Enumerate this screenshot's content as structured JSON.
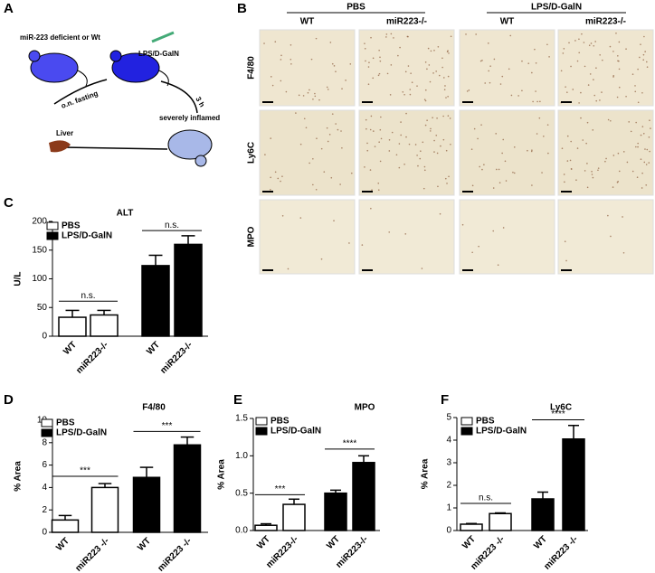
{
  "panel_letters": [
    "A",
    "B"
  ],
  "diagram": {
    "group": "miR-223 deficient or Wt",
    "treatment": "LPS/D-GalN",
    "fasting": "o.n. fasting",
    "time": "3 h",
    "state": "severely inflamed",
    "organ": "Liver"
  },
  "micrographs": {
    "groups": [
      "PBS",
      "LPS/D-GalN"
    ],
    "columns": [
      "WT",
      "miR223-/-",
      "WT",
      "miR223-/-"
    ],
    "rows": [
      "F4/80",
      "Ly6C",
      "MPO"
    ]
  },
  "chart_data": [
    {
      "type": "bar",
      "panel": "C",
      "title": "ALT",
      "ylabel": "U/L",
      "categories": [
        "WT",
        "miR223-/-",
        "WT",
        "miR223-/-"
      ],
      "series": [
        {
          "name": "PBS",
          "color": "#ffffff",
          "values": [
            33,
            37,
            null,
            null
          ],
          "errors": [
            12,
            8,
            null,
            null
          ]
        },
        {
          "name": "LPS/D-GalN",
          "color": "#000000",
          "values": [
            null,
            null,
            123,
            160
          ],
          "errors": [
            null,
            null,
            18,
            15
          ]
        }
      ],
      "ylim": [
        0,
        200
      ],
      "yticks": [
        0,
        50,
        100,
        150,
        200
      ],
      "legend": "upper left",
      "annotations": [
        "n.s.",
        "n.s."
      ]
    },
    {
      "type": "bar",
      "panel": "D",
      "title": "F4/80",
      "ylabel": "% Area",
      "categories": [
        "WT",
        "miR223 -/-",
        "WT",
        "miR223 -/-"
      ],
      "series": [
        {
          "name": "PBS",
          "color": "#ffffff",
          "values": [
            1.1,
            4.0,
            null,
            null
          ],
          "errors": [
            0.4,
            0.35,
            null,
            null
          ]
        },
        {
          "name": "LPS/D-GalN",
          "color": "#000000",
          "values": [
            null,
            null,
            4.9,
            7.8
          ],
          "errors": [
            null,
            null,
            0.9,
            0.7
          ]
        }
      ],
      "ylim": [
        0,
        10
      ],
      "yticks": [
        0,
        2,
        4,
        6,
        8,
        10
      ],
      "legend": "upper left",
      "annotations": [
        "***",
        "***"
      ]
    },
    {
      "type": "bar",
      "panel": "E",
      "title": "MPO",
      "ylabel": "% Area",
      "categories": [
        "WT",
        "miR223-/-",
        "WT",
        "miR223-/-"
      ],
      "series": [
        {
          "name": "PBS",
          "color": "#ffffff",
          "values": [
            0.07,
            0.35,
            null,
            null
          ],
          "errors": [
            0.02,
            0.07,
            null,
            null
          ]
        },
        {
          "name": "LPS/D-GalN",
          "color": "#000000",
          "values": [
            null,
            null,
            0.5,
            0.91
          ],
          "errors": [
            null,
            null,
            0.04,
            0.09
          ]
        }
      ],
      "ylim": [
        0,
        1.5
      ],
      "yticks": [
        {
          "value": 0,
          "label": "0.0"
        },
        0.5,
        {
          "value": 1,
          "label": "1.0"
        },
        1.5
      ],
      "legend": "upper left",
      "annotations": [
        "***",
        "****"
      ]
    },
    {
      "type": "bar",
      "panel": "F",
      "title": "Ly6C",
      "ylabel": "% Area",
      "categories": [
        "WT",
        "miR223 -/-",
        "WT",
        "miR223 -/-"
      ],
      "series": [
        {
          "name": "PBS",
          "color": "#ffffff",
          "values": [
            0.28,
            0.75,
            null,
            null
          ],
          "errors": [
            0.03,
            0.03,
            null,
            null
          ]
        },
        {
          "name": "LPS/D-GalN",
          "color": "#000000",
          "values": [
            null,
            null,
            1.4,
            4.05
          ],
          "errors": [
            null,
            null,
            0.3,
            0.6
          ]
        }
      ],
      "ylim": [
        0,
        5
      ],
      "yticks": [
        0,
        1,
        2,
        3,
        4,
        5
      ],
      "legend": "upper left",
      "annotations": [
        "n.s.",
        "****"
      ]
    }
  ]
}
